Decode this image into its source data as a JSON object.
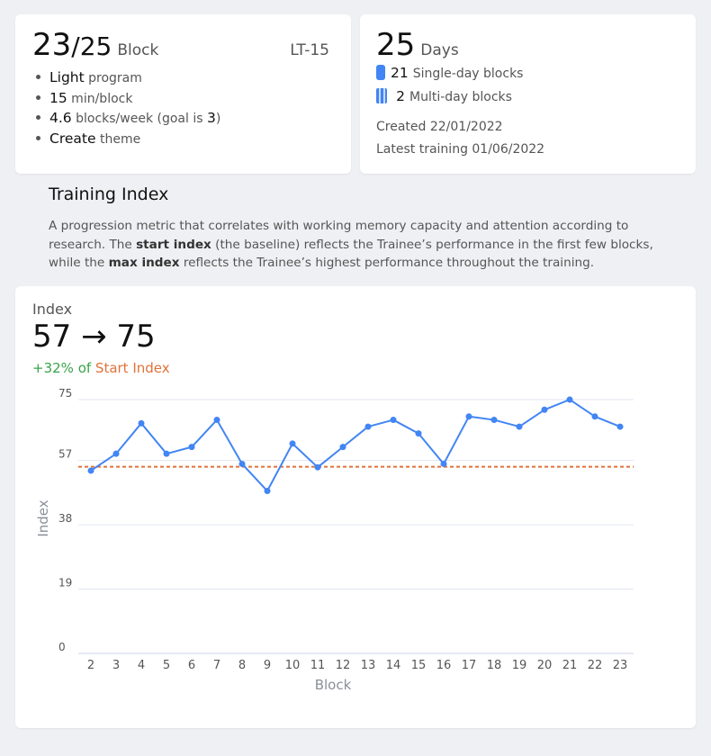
{
  "block_card": {
    "current": "23",
    "total": "/25",
    "unit": "Block",
    "code": "LT-15",
    "facts": [
      {
        "key": "Light",
        "suffix": " program"
      },
      {
        "key": "15",
        "suffix": " min/block"
      },
      {
        "key": "4.6",
        "suffix": " blocks/week (goal is ",
        "key2": "3",
        "suffix2": ")"
      },
      {
        "key": "Create",
        "suffix": " theme"
      }
    ]
  },
  "days_card": {
    "count": "25",
    "unit": "Days",
    "single": {
      "count": "21",
      "label": "Single-day blocks"
    },
    "multi": {
      "count": "2",
      "label": "Multi-day blocks"
    },
    "created": "Created 22/01/2022",
    "latest": "Latest training 01/06/2022"
  },
  "training_index": {
    "title": "Training Index",
    "desc_1": "A progression metric that correlates with working memory capacity and attention according to research. The ",
    "desc_b1": "start index",
    "desc_2": " (the baseline) reflects the Trainee’s performance in the first few blocks, while the ",
    "desc_b2": "max index",
    "desc_3": " reflects the Trainee’s highest performance throughout the training."
  },
  "chart_card": {
    "label": "Index",
    "range": "57 → 75",
    "change_pct": "+32%",
    "change_of": " of ",
    "change_ref": "Start Index"
  },
  "colors": {
    "line": "#4285f4",
    "baseline": "#e0733a",
    "positive": "#38a34a"
  },
  "chart_data": {
    "type": "line",
    "xlabel": "Block",
    "ylabel": "Index",
    "x": [
      2,
      3,
      4,
      5,
      6,
      7,
      8,
      9,
      10,
      11,
      12,
      13,
      14,
      15,
      16,
      17,
      18,
      19,
      20,
      21,
      22,
      23
    ],
    "series": [
      {
        "values": [
          54,
          59,
          68,
          59,
          61,
          69,
          56,
          48,
          62,
          55,
          61,
          67,
          69,
          65,
          56,
          70,
          69,
          67,
          72,
          75,
          70,
          67
        ]
      }
    ],
    "baseline": 57,
    "y_ticks": [
      0,
      19,
      38,
      57,
      75
    ],
    "ylim": [
      0,
      75
    ],
    "grid": true
  }
}
